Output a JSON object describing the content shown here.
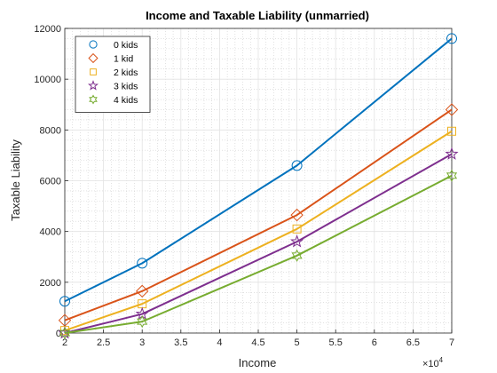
{
  "chart_data": {
    "type": "line",
    "title": "Income and Taxable Liability (unmarried)",
    "xlabel": "Income",
    "ylabel": "Taxable Liability",
    "x_exponent_label": "×10",
    "x_exponent_power": "4",
    "xlim": [
      20000,
      70000
    ],
    "ylim": [
      0,
      12000
    ],
    "x_tick_values": [
      20000,
      25000,
      30000,
      35000,
      40000,
      45000,
      50000,
      55000,
      60000,
      65000,
      70000
    ],
    "x_tick_labels": [
      "2",
      "2.5",
      "3",
      "3.5",
      "4",
      "4.5",
      "5",
      "5.5",
      "6",
      "6.5",
      "7"
    ],
    "y_tick_values": [
      0,
      2000,
      4000,
      6000,
      8000,
      10000,
      12000
    ],
    "y_tick_labels": [
      "0",
      "2000",
      "4000",
      "6000",
      "8000",
      "10000",
      "12000"
    ],
    "grid": true,
    "minor_grid": true,
    "legend_position": "top-left",
    "x": [
      20000,
      30000,
      50000,
      70000
    ],
    "series": [
      {
        "name": "0 kids",
        "marker": "circle",
        "color": "#0072BD",
        "values": [
          1250,
          2750,
          6600,
          11600
        ]
      },
      {
        "name": "1 kid",
        "marker": "diamond",
        "color": "#D95319",
        "values": [
          500,
          1650,
          4650,
          8800
        ]
      },
      {
        "name": "2 kids",
        "marker": "square",
        "color": "#EDB120",
        "values": [
          100,
          1150,
          4100,
          7950
        ]
      },
      {
        "name": "3 kids",
        "marker": "star",
        "color": "#7E2F8E",
        "values": [
          0,
          750,
          3600,
          7050
        ]
      },
      {
        "name": "4 kids",
        "marker": "hexagram",
        "color": "#77AC30",
        "values": [
          0,
          450,
          3050,
          6200
        ]
      }
    ]
  }
}
